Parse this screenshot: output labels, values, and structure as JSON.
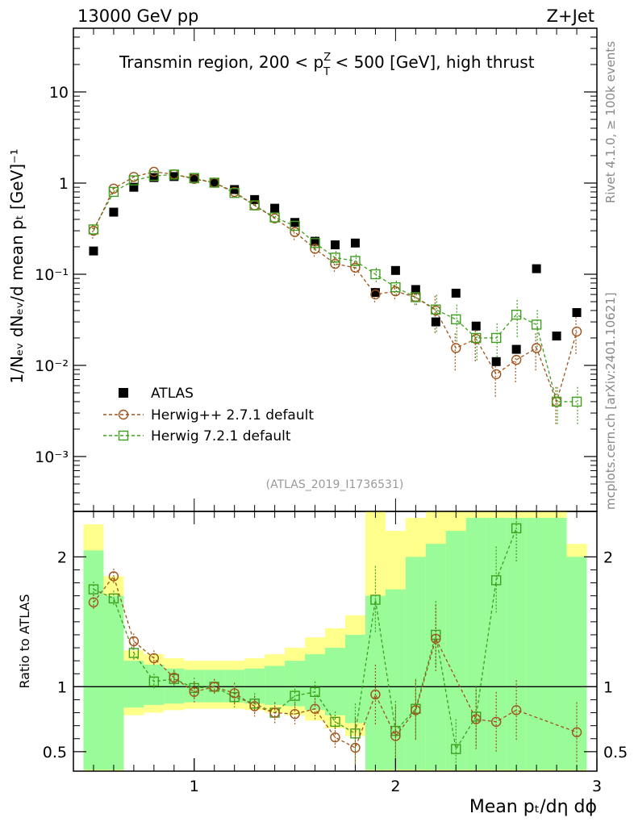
{
  "header": {
    "energy_label": "13000 GeV pp",
    "process_label": "Z+Jet",
    "region_label_pre": "Transmin region, 200 < p",
    "region_label_sup": "Z",
    "region_label_sub": "T",
    "region_label_post": " < 500 [GeV], high thrust",
    "analysis_id": "(ATLAS_2019_I1736531)"
  },
  "side_labels": {
    "rivet": "Rivet 4.1.0, ≥ 100k events",
    "mcplots": "mcplots.cern.ch [arXiv:2401.10621]"
  },
  "axes": {
    "main_ylabel": "1/Nₑᵥ dNₑᵥ/d mean pₜ [GeV]⁻¹",
    "ratio_ylabel": "Ratio to ATLAS",
    "xlabel": "Mean pₜ/dη dϕ"
  },
  "legend": {
    "atlas": "ATLAS",
    "herwigpp": "Herwig++ 2.7.1 default",
    "herwig7": "Herwig 7.2.1 default"
  },
  "chart_data": {
    "type": "scatter",
    "main_panel": {
      "y_scale": "log",
      "ylim": [
        0.00025,
        50
      ],
      "xlim": [
        0.4,
        3.0
      ],
      "x": [
        0.5,
        0.6,
        0.7,
        0.8,
        0.9,
        1.0,
        1.1,
        1.2,
        1.3,
        1.4,
        1.5,
        1.6,
        1.7,
        1.8,
        1.9,
        2.0,
        2.1,
        2.2,
        2.3,
        2.4,
        2.5,
        2.6,
        2.7,
        2.8,
        2.9
      ],
      "series": [
        {
          "name": "ATLAS",
          "marker": "filled-square",
          "color": "#000000",
          "values": [
            0.18,
            0.48,
            0.9,
            1.15,
            1.18,
            1.15,
            1.02,
            0.85,
            0.66,
            0.53,
            0.37,
            0.23,
            0.21,
            0.22,
            0.063,
            0.11,
            0.068,
            0.03,
            0.062,
            0.027,
            0.011,
            0.015,
            0.115,
            0.021,
            0.038
          ]
        },
        {
          "name": "Herwig++ 2.7.1 default",
          "marker": "open-circle",
          "color": "#a0521a",
          "values": [
            0.3,
            0.87,
            1.17,
            1.33,
            1.25,
            1.11,
            1.01,
            0.8,
            0.57,
            0.41,
            0.29,
            0.19,
            0.13,
            0.118,
            0.06,
            0.065,
            0.056,
            0.04,
            0.0155,
            0.0195,
            0.008,
            0.0115,
            0.0155,
            0.004,
            0.0235
          ]
        },
        {
          "name": "Herwig 7.2.1 default",
          "marker": "open-square",
          "color": "#3e9e1e",
          "values": [
            0.31,
            0.8,
            1.07,
            1.2,
            1.24,
            1.13,
            1.01,
            0.78,
            0.57,
            0.42,
            0.34,
            0.22,
            0.152,
            0.14,
            0.1,
            0.072,
            0.056,
            0.041,
            0.032,
            0.02,
            0.02,
            0.036,
            0.028,
            0.004,
            0.004
          ]
        }
      ]
    },
    "ratio_panel": {
      "ylim": [
        0.35,
        2.35
      ],
      "yticks": [
        0.5,
        1,
        2
      ],
      "xticks": [
        1,
        2,
        3
      ],
      "reference_line": 1,
      "herwigpp_ratio": [
        1.65,
        1.85,
        1.35,
        1.22,
        1.07,
        0.96,
        1.0,
        0.95,
        0.85,
        0.8,
        0.79,
        0.83,
        0.61,
        0.53,
        0.94,
        0.62,
        0.82,
        1.37,
        null,
        0.75,
        0.73,
        0.82,
        null,
        null,
        0.65
      ],
      "herwig7_ratio": [
        1.75,
        1.68,
        1.26,
        1.04,
        1.06,
        0.99,
        1.0,
        0.92,
        0.87,
        0.8,
        0.93,
        0.96,
        0.73,
        0.64,
        1.67,
        0.66,
        0.83,
        1.4,
        0.52,
        0.77,
        1.82,
        2.22,
        null,
        null,
        null
      ],
      "band_green": [
        [
          0.36,
          2.05
        ],
        [
          0.36,
          1.7
        ],
        [
          0.84,
          1.2
        ],
        [
          0.86,
          1.17
        ],
        [
          0.87,
          1.14
        ],
        [
          0.88,
          1.13
        ],
        [
          0.88,
          1.13
        ],
        [
          0.88,
          1.13
        ],
        [
          0.87,
          1.14
        ],
        [
          0.86,
          1.16
        ],
        [
          0.85,
          1.2
        ],
        [
          0.82,
          1.25
        ],
        [
          0.78,
          1.3
        ],
        [
          0.72,
          1.4
        ],
        [
          0.36,
          1.7
        ],
        [
          0.36,
          1.75
        ],
        [
          0.36,
          2.0
        ],
        [
          0.36,
          2.1
        ],
        [
          0.36,
          2.2
        ],
        [
          0.36,
          2.3
        ],
        [
          0.36,
          2.3
        ],
        [
          0.36,
          2.3
        ],
        [
          0.36,
          2.3
        ],
        [
          0.36,
          2.3
        ],
        [
          0.36,
          2.0
        ]
      ],
      "band_yellow": [
        [
          0.35,
          2.25
        ],
        [
          0.35,
          1.85
        ],
        [
          0.78,
          1.28
        ],
        [
          0.8,
          1.25
        ],
        [
          0.82,
          1.22
        ],
        [
          0.83,
          1.2
        ],
        [
          0.83,
          1.2
        ],
        [
          0.83,
          1.2
        ],
        [
          0.82,
          1.22
        ],
        [
          0.8,
          1.25
        ],
        [
          0.78,
          1.3
        ],
        [
          0.74,
          1.38
        ],
        [
          0.68,
          1.45
        ],
        [
          0.62,
          1.55
        ],
        [
          0.35,
          2.35
        ],
        [
          0.35,
          2.2
        ],
        [
          0.35,
          2.3
        ],
        [
          0.35,
          2.35
        ],
        [
          0.35,
          2.35
        ],
        [
          0.35,
          2.35
        ],
        [
          0.35,
          2.35
        ],
        [
          0.35,
          2.35
        ],
        [
          0.35,
          2.35
        ],
        [
          0.35,
          2.35
        ],
        [
          0.35,
          2.1
        ]
      ]
    },
    "main_yticks": [
      "10⁻³",
      "10⁻²",
      "10⁻¹",
      "1",
      "10"
    ],
    "xtick_labels": [
      "1",
      "2",
      "3"
    ],
    "ratio_tick_labels": [
      "0.5",
      "1",
      "2"
    ]
  }
}
